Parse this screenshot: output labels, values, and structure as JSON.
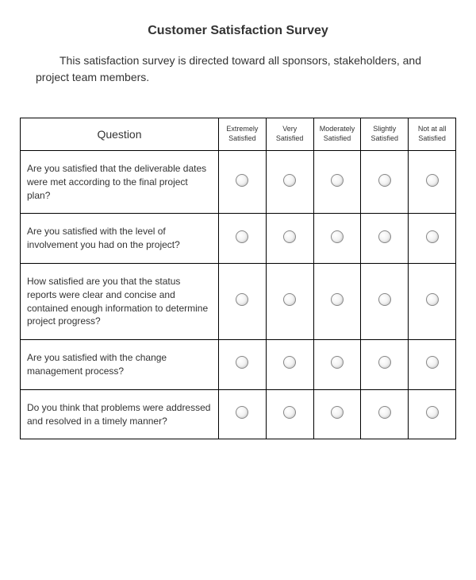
{
  "title": "Customer Satisfaction Survey",
  "intro": "This satisfaction survey is directed toward all sponsors, stakeholders, and project team members.",
  "table": {
    "question_header": "Question",
    "rating_headers": [
      "Extremely Satisfied",
      "Very Satisfied",
      "Moderately Satisfied",
      "Slightly Satisfied",
      "Not at all Satisfied"
    ],
    "questions": [
      "Are you satisfied that the deliverable dates were met according to the final project plan?",
      "Are you satisfied with the level of involvement you had on the project?",
      "How satisfied are you that the status reports were clear and concise and contained enough information to determine project progress?",
      "Are you satisfied with the change management process?",
      "Do you think that problems were addressed and resolved in a timely manner?"
    ]
  },
  "styling": {
    "background_color": "#ffffff",
    "text_color": "#333333",
    "border_color": "#000000",
    "radio_border_color": "#888888",
    "title_fontsize": 16,
    "intro_fontsize": 14,
    "question_fontsize": 12,
    "header_fontsize": 9,
    "question_col_width": 250,
    "radio_size": 16
  }
}
